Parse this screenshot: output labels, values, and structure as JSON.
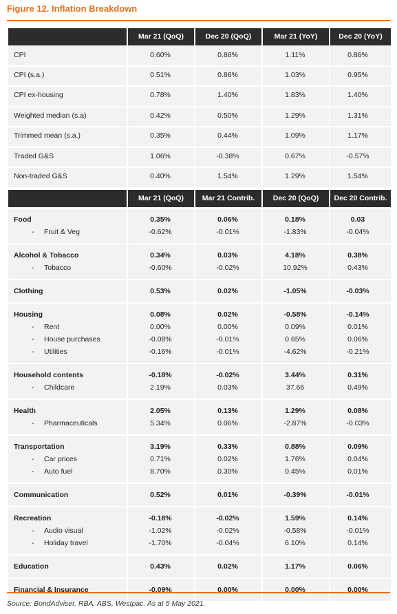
{
  "title": "Figure 12. Inflation Breakdown",
  "table1": {
    "headers": [
      "Mar 21 (QoQ)",
      "Dec 20 (QoQ)",
      "Mar 21 (YoY)",
      "Dec 20 (YoY)"
    ],
    "rows": [
      {
        "label": "CPI",
        "v": [
          "0.60%",
          "0.86%",
          "1.11%",
          "0.86%"
        ]
      },
      {
        "label": "CPI (s.a.)",
        "v": [
          "0.51%",
          "0.86%",
          "1.03%",
          "0.95%"
        ]
      },
      {
        "label": "CPI ex-housing",
        "v": [
          "0.78%",
          "1.40%",
          "1.83%",
          "1.40%"
        ]
      },
      {
        "label": "Weighted median (s.a)",
        "v": [
          "0.42%",
          "0.50%",
          "1.29%",
          "1.31%"
        ]
      },
      {
        "label": "Trimmed mean (s.a.)",
        "v": [
          "0.35%",
          "0.44%",
          "1.09%",
          "1.17%"
        ]
      },
      {
        "label": "Traded G&S",
        "v": [
          "1.06%",
          "-0.38%",
          "0.67%",
          "-0.57%"
        ]
      },
      {
        "label": "Non-traded G&S",
        "v": [
          "0.40%",
          "1.54%",
          "1.29%",
          "1.54%"
        ]
      }
    ]
  },
  "table2": {
    "headers": [
      "Mar 21 (QoQ)",
      "Mar 21 Contrib.",
      "Dec 20 (QoQ)",
      "Dec 20 Contrib."
    ],
    "groups": [
      {
        "label": "Food",
        "v": [
          "0.35%",
          "0.06%",
          "0.18%",
          "0.03"
        ],
        "subs": [
          {
            "label": "Fruit & Veg",
            "v": [
              "-0.62%",
              "-0.01%",
              "-1.83%",
              "-0.04%"
            ]
          }
        ]
      },
      {
        "label": "Alcohol & Tobacco",
        "v": [
          "0.34%",
          "0.03%",
          "4.18%",
          "0.38%"
        ],
        "subs": [
          {
            "label": "Tobacco",
            "v": [
              "-0.60%",
              "-0.02%",
              "10.92%",
              "0.43%"
            ]
          }
        ]
      },
      {
        "label": "Clothing",
        "v": [
          "0.53%",
          "0.02%",
          "-1.05%",
          "-0.03%"
        ],
        "subs": []
      },
      {
        "label": "Housing",
        "v": [
          "0.08%",
          "0.02%",
          "-0.58%",
          "-0.14%"
        ],
        "subs": [
          {
            "label": "Rent",
            "v": [
              "0.00%",
              "0.00%",
              "0.09%",
              "0.01%"
            ]
          },
          {
            "label": "House purchases",
            "v": [
              "-0.08%",
              "-0.01%",
              "0.65%",
              "0.06%"
            ]
          },
          {
            "label": "Utilities",
            "v": [
              "-0.16%",
              "-0.01%",
              "-4.62%",
              "-0.21%"
            ]
          }
        ]
      },
      {
        "label": "Household contents",
        "v": [
          "-0.18%",
          "-0.02%",
          "3.44%",
          "0.31%"
        ],
        "subs": [
          {
            "label": "Childcare",
            "v": [
              "2.19%",
              "0.03%",
              "37.66",
              "0.49%"
            ]
          }
        ]
      },
      {
        "label": "Health",
        "v": [
          "2.05%",
          "0.13%",
          "1.29%",
          "0.08%"
        ],
        "subs": [
          {
            "label": "Pharmaceuticals",
            "v": [
              "5.34%",
              "0.06%",
              "-2.87%",
              "-0.03%"
            ]
          }
        ]
      },
      {
        "label": "Transportation",
        "v": [
          "3.19%",
          "0.33%",
          "0.88%",
          "0.09%"
        ],
        "subs": [
          {
            "label": "Car prices",
            "v": [
              "0.71%",
              "0.02%",
              "1.76%",
              "0.04%"
            ]
          },
          {
            "label": "Auto fuel",
            "v": [
              "8.70%",
              "0.30%",
              "0.45%",
              "0.01%"
            ]
          }
        ]
      },
      {
        "label": "Communication",
        "v": [
          "0.52%",
          "0.01%",
          "-0.39%",
          "-0.01%"
        ],
        "subs": []
      },
      {
        "label": "Recreation",
        "v": [
          "-0.18%",
          "-0.02%",
          "1.59%",
          "0.14%"
        ],
        "subs": [
          {
            "label": "Audio visual",
            "v": [
              "-1.02%",
              "-0.02%",
              "-0.58%",
              "-0.01%"
            ]
          },
          {
            "label": "Holiday travel",
            "v": [
              "-1.70%",
              "-0.04%",
              "6.10%",
              "0.14%"
            ]
          }
        ]
      },
      {
        "label": "Education",
        "v": [
          "0.43%",
          "0.02%",
          "1.17%",
          "0.06%"
        ],
        "subs": []
      },
      {
        "label": "Financial & Insurance",
        "v": [
          "-0.09%",
          "0.00%",
          "0.00%",
          "0.00%"
        ],
        "subs": []
      }
    ]
  },
  "dash": "-",
  "footnote": "Source: BondAdviser, RBA, ABS, Westpac. As at 5 May 2021."
}
